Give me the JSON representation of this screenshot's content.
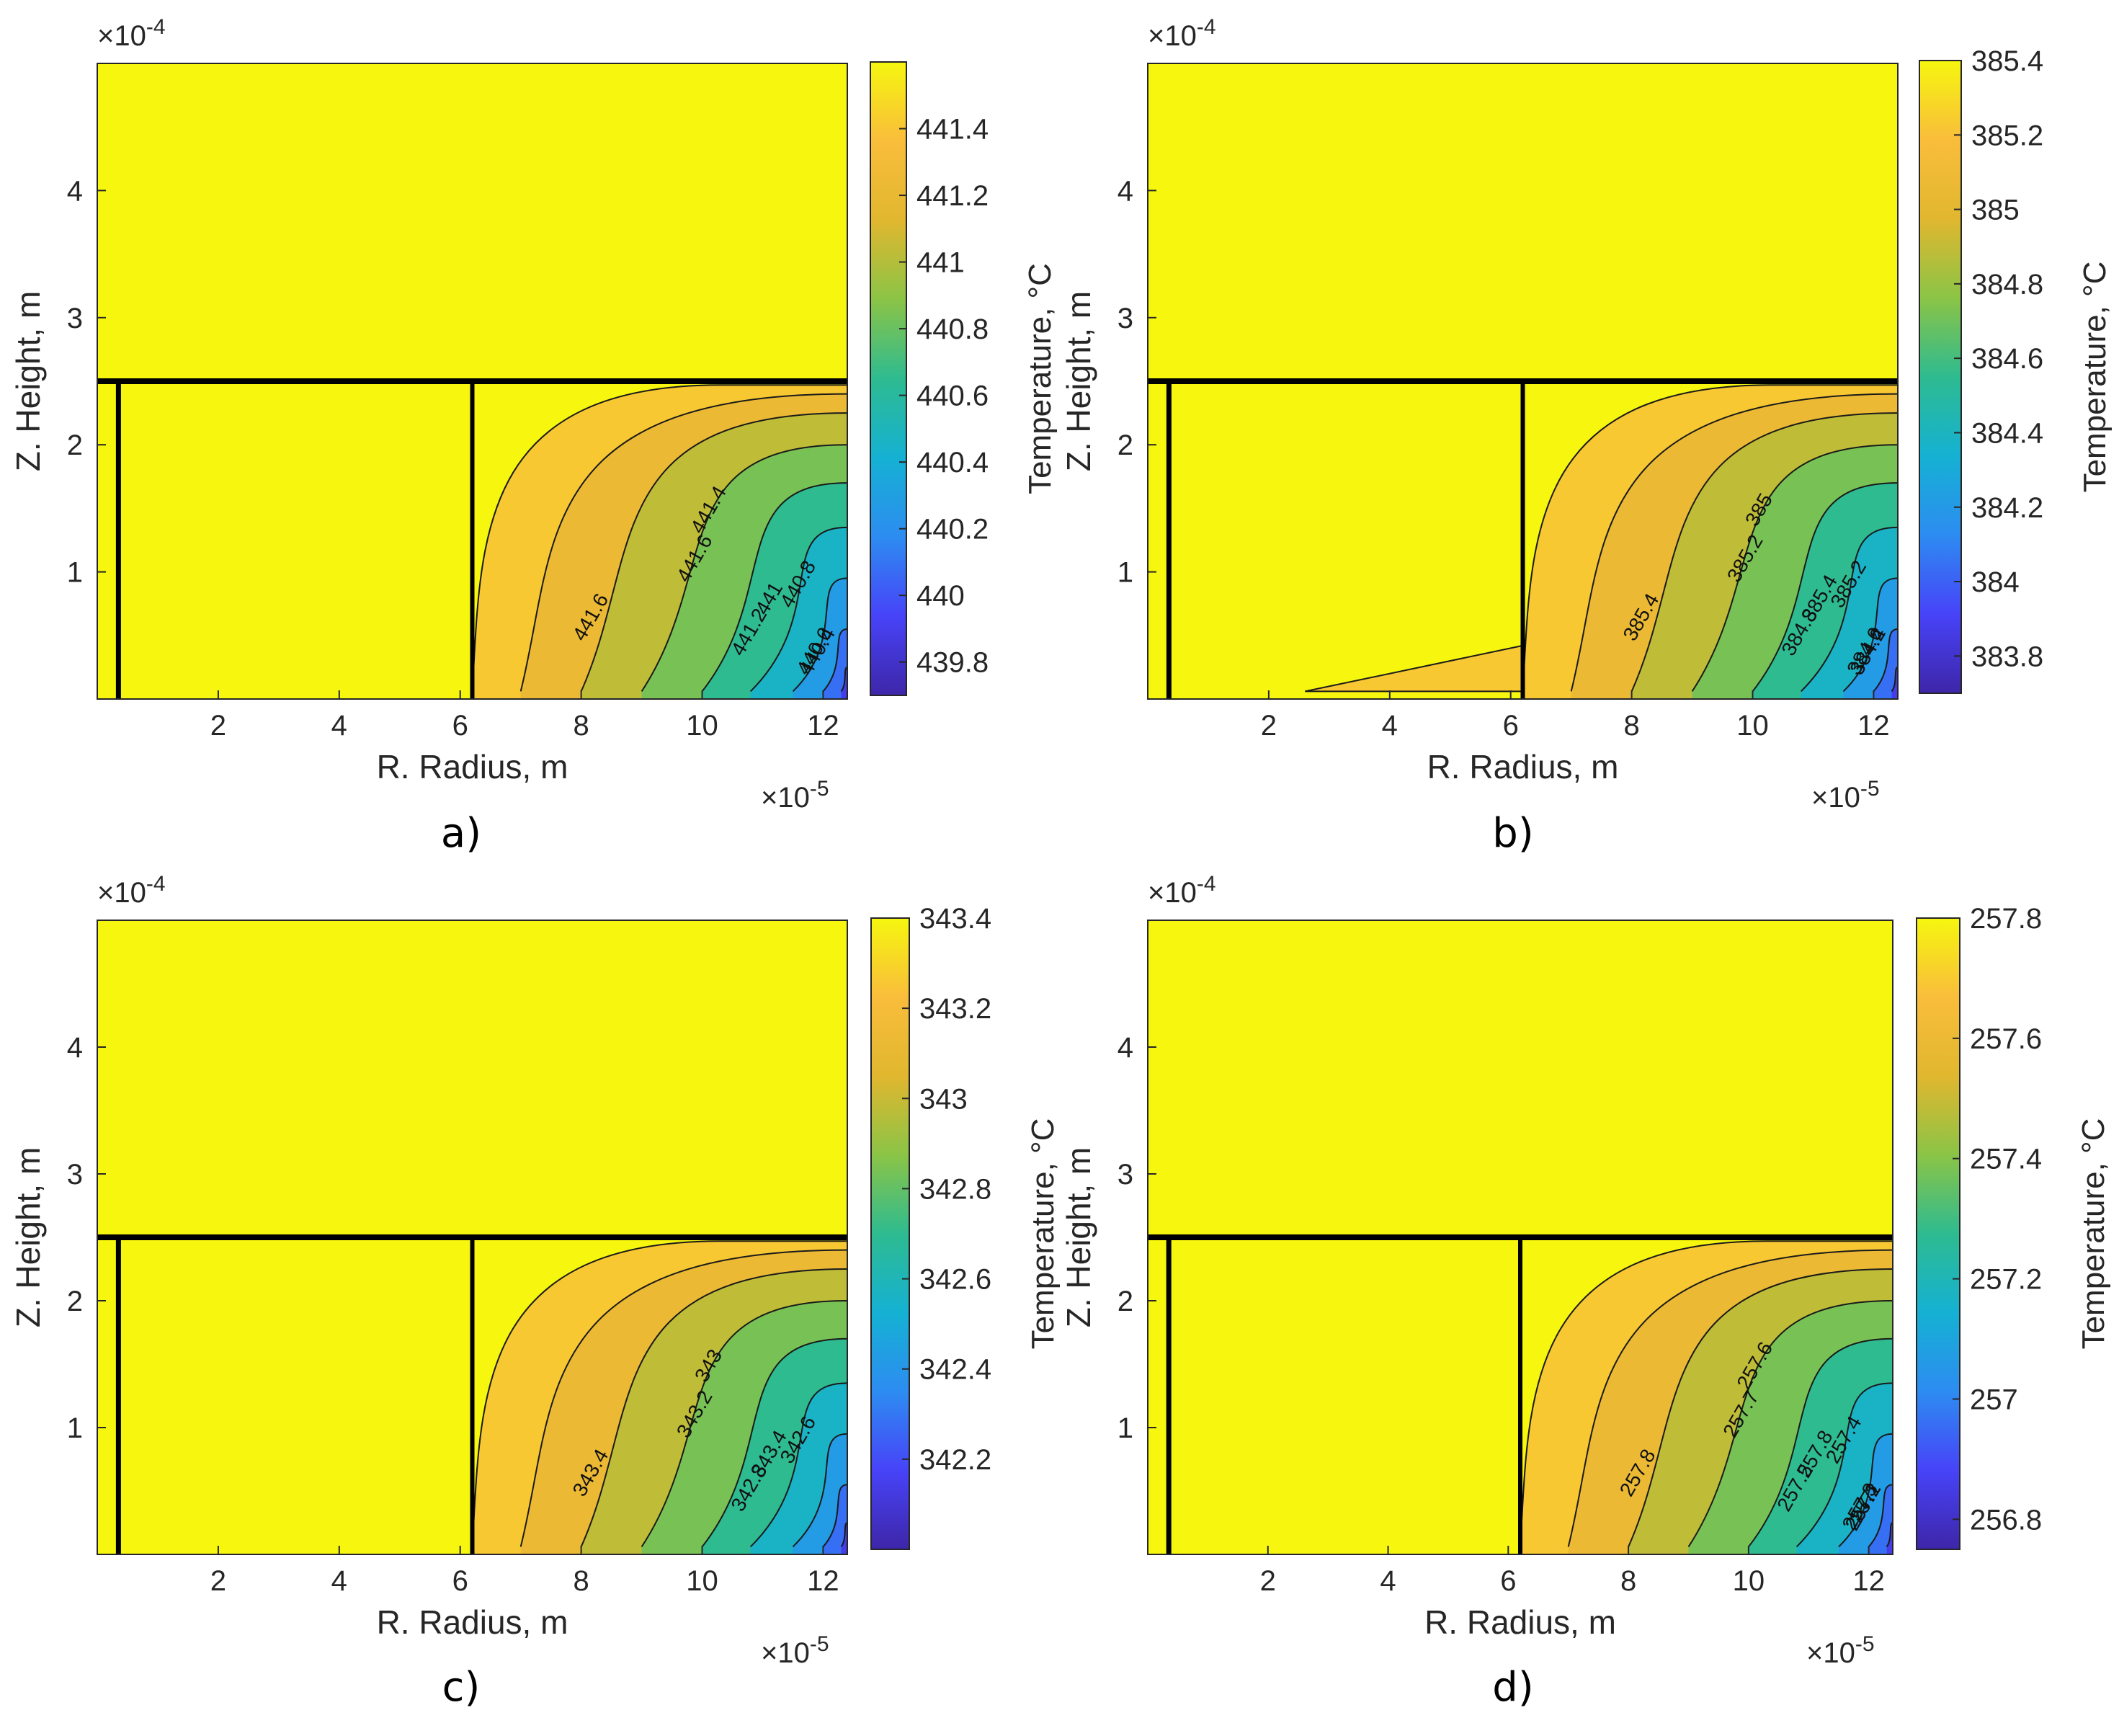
{
  "figure": {
    "axis_labels": {
      "x": "R. Radius, m",
      "y": "Z. Height, m",
      "colorbar": "Temperature, °C"
    },
    "axis_multipliers": {
      "x_base": "×10",
      "x_exp": "-5",
      "y_base": "×10",
      "y_exp": "-4"
    },
    "colormap": [
      "#3e26a8",
      "#4743f8",
      "#2d8cf1",
      "#15b1d3",
      "#2ebb90",
      "#8bc446",
      "#e1b72f",
      "#f9bd3b",
      "#f6f60f"
    ]
  },
  "chart_data": [
    {
      "type": "contour",
      "panel": "a)",
      "xlabel": "R. Radius, m",
      "ylabel": "Z. Height, m",
      "colorbar_label": "Temperature, °C",
      "x_unit_exponent": -5,
      "y_unit_exponent": -4,
      "xlim": [
        0,
        12.4
      ],
      "ylim": [
        0,
        5.0
      ],
      "xticks": [
        2,
        4,
        6,
        8,
        10,
        12
      ],
      "yticks": [
        1,
        2,
        3,
        4
      ],
      "clim": [
        439.7,
        441.6
      ],
      "colorbar_ticks": [
        "439.8",
        "440",
        "440.2",
        "440.4",
        "440.6",
        "440.8",
        "441",
        "441.2",
        "441.4"
      ],
      "levels": [
        "441.6",
        "441.4",
        "441.2",
        "441",
        "440.8",
        "440.6",
        "440.4",
        "440.2",
        "440"
      ],
      "contour_labels": [
        "441.6",
        "441.6",
        "441.4",
        "441.2",
        "441",
        "440.8",
        "440.6",
        "440.4"
      ]
    },
    {
      "type": "contour",
      "panel": "b)",
      "xlabel": "R. Radius, m",
      "ylabel": "Z. Height, m",
      "colorbar_label": "Temperature, °C",
      "x_unit_exponent": -5,
      "y_unit_exponent": -4,
      "xlim": [
        0,
        12.4
      ],
      "ylim": [
        0,
        5.0
      ],
      "xticks": [
        2,
        4,
        6,
        8,
        10,
        12
      ],
      "yticks": [
        1,
        2,
        3,
        4
      ],
      "clim": [
        383.7,
        385.4
      ],
      "colorbar_ticks": [
        "383.8",
        "384",
        "384.2",
        "384.4",
        "384.6",
        "384.8",
        "385",
        "385.2",
        "385.4"
      ],
      "levels": [
        "385.4",
        "385.2",
        "385",
        "384.8",
        "384.6",
        "384.4",
        "384.2",
        "384"
      ],
      "contour_labels": [
        "385.4",
        "385.2",
        "385",
        "384.8",
        "385.4",
        "385.2",
        "384.6",
        "384.4",
        "384.2"
      ]
    },
    {
      "type": "contour",
      "panel": "c)",
      "xlabel": "R. Radius, m",
      "ylabel": "Z. Height, m",
      "colorbar_label": "Temperature, °C",
      "x_unit_exponent": -5,
      "y_unit_exponent": -4,
      "xlim": [
        0,
        12.4
      ],
      "ylim": [
        0,
        5.0
      ],
      "xticks": [
        2,
        4,
        6,
        8,
        10,
        12
      ],
      "yticks": [
        1,
        2,
        3,
        4
      ],
      "clim": [
        342.0,
        343.4
      ],
      "colorbar_ticks": [
        "342.2",
        "342.4",
        "342.6",
        "342.8",
        "343",
        "343.2",
        "343.4"
      ],
      "levels": [
        "343.4",
        "343.2",
        "343",
        "342.8",
        "342.6",
        "342.4"
      ],
      "contour_labels": [
        "343.4",
        "343.2",
        "343",
        "342.8",
        "343.4",
        "342.6"
      ]
    },
    {
      "type": "contour",
      "panel": "d)",
      "xlabel": "R. Radius, m",
      "ylabel": "Z. Height, m",
      "colorbar_label": "Temperature, °C",
      "x_unit_exponent": -5,
      "y_unit_exponent": -4,
      "xlim": [
        0,
        12.4
      ],
      "ylim": [
        0,
        5.0
      ],
      "xticks": [
        2,
        4,
        6,
        8,
        10,
        12
      ],
      "yticks": [
        1,
        2,
        3,
        4
      ],
      "clim": [
        256.75,
        257.8
      ],
      "colorbar_ticks": [
        "256.8",
        "257",
        "257.2",
        "257.4",
        "257.6",
        "257.8"
      ],
      "levels": [
        "257.8",
        "257.7",
        "257.6",
        "257.5",
        "257.4",
        "257.3",
        "257.2",
        "257.1",
        "257"
      ],
      "contour_labels": [
        "257.8",
        "257.7",
        "257.6",
        "257.5",
        "257.8",
        "257.4",
        "257.3",
        "257.2",
        "257.1",
        "257"
      ]
    }
  ]
}
